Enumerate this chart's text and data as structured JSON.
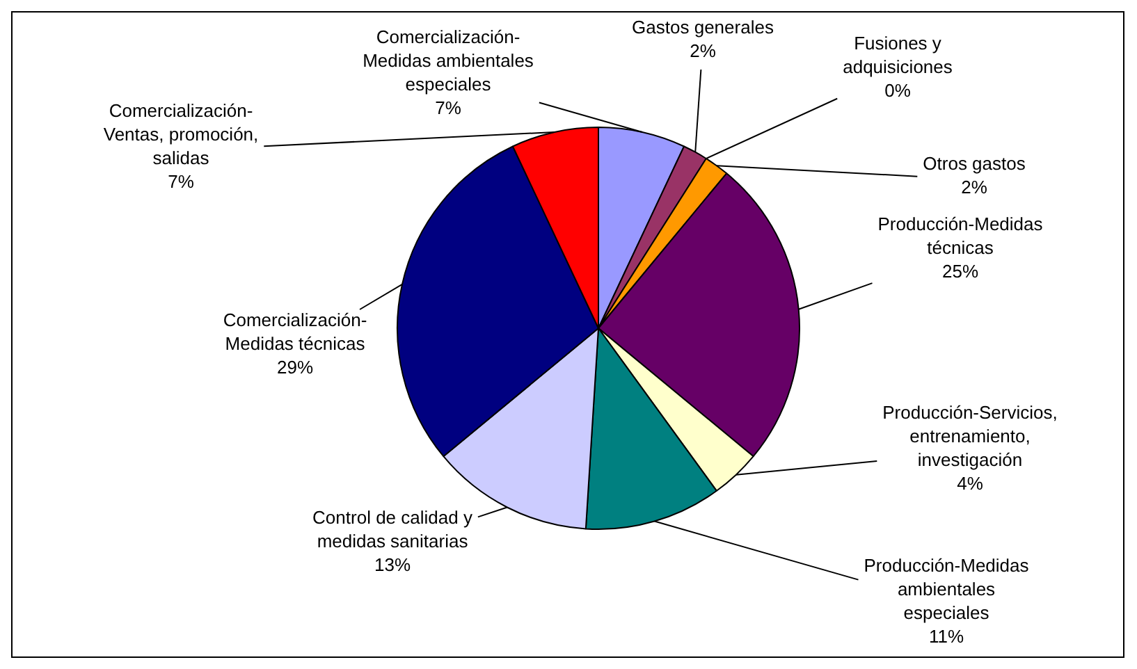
{
  "chart_data": {
    "type": "pie",
    "categories": [
      "Comercialización-Medidas ambientales especiales",
      "Gastos generales",
      "Fusiones y adquisiciones",
      "Otros gastos",
      "Producción-Medidas técnicas",
      "Producción-Servicios, entrenamiento, investigación",
      "Producción-Medidas ambientales especiales",
      "Control de calidad y medidas sanitarias",
      "Comercialización-Medidas técnicas",
      "Comercialización-Ventas, promoción, salidas"
    ],
    "values": [
      7,
      2,
      0,
      2,
      25,
      4,
      11,
      13,
      29,
      7
    ],
    "value_labels": [
      "7%",
      "2%",
      "0%",
      "2%",
      "25%",
      "4%",
      "11%",
      "13%",
      "29%",
      "7%"
    ],
    "colors": [
      "#9999ff",
      "#993366",
      "#cc6600",
      "#ff9900",
      "#660066",
      "#ffffcc",
      "#008080",
      "#ccccff",
      "#000080",
      "#ff0000"
    ],
    "legend": false
  }
}
